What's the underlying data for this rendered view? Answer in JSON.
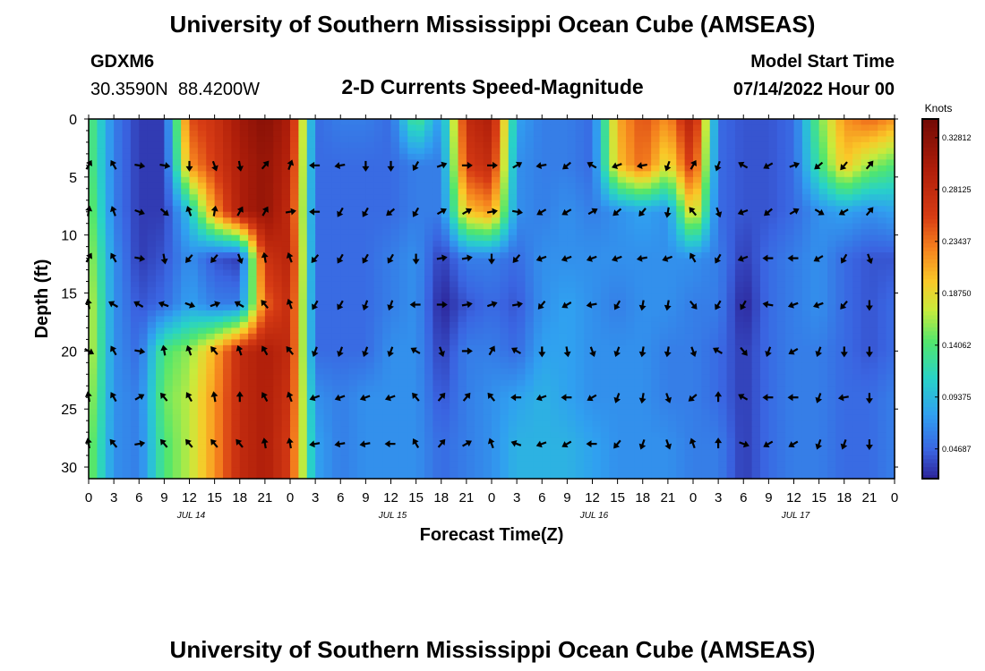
{
  "page": {
    "title": "University of Southern Mississippi Ocean Cube (AMSEAS)",
    "footer_title": "University of Southern Mississippi Ocean Cube (AMSEAS)",
    "station_id": "GDXM6",
    "station_coords": "30.3590N  88.4200W",
    "model_start_label": "Model Start Time",
    "model_start_value": "07/14/2022 Hour 00"
  },
  "chart_data": {
    "type": "heatmap",
    "title": "2-D Currents Speed-Magnitude",
    "xlabel": "Forecast Time(Z)",
    "ylabel": "Depth (ft)",
    "x_range_hours": [
      0,
      96
    ],
    "y_range_ft": [
      0,
      31
    ],
    "y_inverted": true,
    "y_ticks": [
      {
        "value": 0,
        "label": "0"
      },
      {
        "value": 5,
        "label": "5"
      },
      {
        "value": 10,
        "label": "10"
      },
      {
        "value": 15,
        "label": "15"
      },
      {
        "value": 20,
        "label": "20"
      },
      {
        "value": 25,
        "label": "25"
      },
      {
        "value": 30,
        "label": "30"
      }
    ],
    "x_ticks": [
      {
        "hour": 0,
        "label": "0"
      },
      {
        "hour": 3,
        "label": "3"
      },
      {
        "hour": 6,
        "label": "6"
      },
      {
        "hour": 9,
        "label": "9"
      },
      {
        "hour": 12,
        "label": "12"
      },
      {
        "hour": 15,
        "label": "15"
      },
      {
        "hour": 18,
        "label": "18"
      },
      {
        "hour": 21,
        "label": "21"
      },
      {
        "hour": 24,
        "label": "0"
      },
      {
        "hour": 27,
        "label": "3"
      },
      {
        "hour": 30,
        "label": "6"
      },
      {
        "hour": 33,
        "label": "9"
      },
      {
        "hour": 36,
        "label": "12"
      },
      {
        "hour": 39,
        "label": "15"
      },
      {
        "hour": 42,
        "label": "18"
      },
      {
        "hour": 45,
        "label": "21"
      },
      {
        "hour": 48,
        "label": "0"
      },
      {
        "hour": 51,
        "label": "3"
      },
      {
        "hour": 54,
        "label": "6"
      },
      {
        "hour": 57,
        "label": "9"
      },
      {
        "hour": 60,
        "label": "12"
      },
      {
        "hour": 63,
        "label": "15"
      },
      {
        "hour": 66,
        "label": "18"
      },
      {
        "hour": 69,
        "label": "21"
      },
      {
        "hour": 72,
        "label": "0"
      },
      {
        "hour": 75,
        "label": "3"
      },
      {
        "hour": 78,
        "label": "6"
      },
      {
        "hour": 81,
        "label": "9"
      },
      {
        "hour": 84,
        "label": "12"
      },
      {
        "hour": 87,
        "label": "15"
      },
      {
        "hour": 90,
        "label": "18"
      },
      {
        "hour": 93,
        "label": "21"
      },
      {
        "hour": 96,
        "label": "0"
      }
    ],
    "date_labels": [
      {
        "hour": 12,
        "label": "JUL 14"
      },
      {
        "hour": 36,
        "label": "JUL 15"
      },
      {
        "hour": 60,
        "label": "JUL 16"
      },
      {
        "hour": 84,
        "label": "JUL 17"
      }
    ],
    "colorbar": {
      "title": "Knots",
      "min": 0.02,
      "max": 0.345,
      "ticks": [
        {
          "value": 0.04687,
          "label": "0.04687"
        },
        {
          "value": 0.09375,
          "label": "0.09375"
        },
        {
          "value": 0.14062,
          "label": "0.14062"
        },
        {
          "value": 0.1875,
          "label": "0.18750"
        },
        {
          "value": 0.23437,
          "label": "0.23437"
        },
        {
          "value": 0.28125,
          "label": "0.28125"
        },
        {
          "value": 0.32812,
          "label": "0.32812"
        }
      ]
    },
    "speed_depths_ft": [
      0,
      4,
      8,
      12,
      16,
      20,
      24,
      28,
      31
    ],
    "speed_hours": [
      0,
      3,
      6,
      9,
      12,
      15,
      18,
      21,
      24,
      27,
      30,
      33,
      36,
      39,
      42,
      45,
      48,
      51,
      54,
      57,
      60,
      63,
      66,
      69,
      72,
      75,
      78,
      81,
      84,
      87,
      90,
      93,
      96
    ],
    "speed_knots": [
      [
        0.15,
        0.06,
        0.03,
        0.03,
        0.25,
        0.27,
        0.31,
        0.33,
        0.3,
        0.05,
        0.06,
        0.06,
        0.05,
        0.14,
        0.07,
        0.28,
        0.3,
        0.08,
        0.06,
        0.06,
        0.05,
        0.21,
        0.25,
        0.22,
        0.3,
        0.05,
        0.04,
        0.04,
        0.05,
        0.15,
        0.22,
        0.24,
        0.22
      ],
      [
        0.15,
        0.06,
        0.03,
        0.03,
        0.22,
        0.26,
        0.3,
        0.32,
        0.29,
        0.05,
        0.05,
        0.05,
        0.05,
        0.06,
        0.06,
        0.26,
        0.28,
        0.07,
        0.06,
        0.06,
        0.05,
        0.2,
        0.24,
        0.18,
        0.27,
        0.05,
        0.04,
        0.04,
        0.05,
        0.13,
        0.2,
        0.16,
        0.14
      ],
      [
        0.16,
        0.06,
        0.03,
        0.03,
        0.1,
        0.22,
        0.3,
        0.32,
        0.28,
        0.05,
        0.05,
        0.05,
        0.05,
        0.06,
        0.06,
        0.2,
        0.22,
        0.07,
        0.06,
        0.07,
        0.06,
        0.07,
        0.08,
        0.07,
        0.2,
        0.05,
        0.04,
        0.04,
        0.05,
        0.07,
        0.08,
        0.07,
        0.08
      ],
      [
        0.17,
        0.07,
        0.03,
        0.04,
        0.07,
        0.04,
        0.03,
        0.27,
        0.29,
        0.05,
        0.05,
        0.05,
        0.06,
        0.07,
        0.03,
        0.06,
        0.06,
        0.05,
        0.07,
        0.07,
        0.07,
        0.07,
        0.07,
        0.07,
        0.07,
        0.06,
        0.03,
        0.05,
        0.06,
        0.07,
        0.05,
        0.04,
        0.04
      ],
      [
        0.18,
        0.07,
        0.04,
        0.05,
        0.08,
        0.06,
        0.06,
        0.24,
        0.28,
        0.05,
        0.05,
        0.05,
        0.06,
        0.07,
        0.02,
        0.04,
        0.05,
        0.04,
        0.07,
        0.08,
        0.07,
        0.06,
        0.07,
        0.07,
        0.06,
        0.06,
        0.02,
        0.05,
        0.06,
        0.07,
        0.05,
        0.04,
        0.05
      ],
      [
        0.18,
        0.07,
        0.05,
        0.14,
        0.16,
        0.21,
        0.28,
        0.3,
        0.28,
        0.05,
        0.05,
        0.05,
        0.07,
        0.07,
        0.03,
        0.06,
        0.06,
        0.05,
        0.08,
        0.08,
        0.07,
        0.07,
        0.07,
        0.06,
        0.06,
        0.05,
        0.03,
        0.05,
        0.06,
        0.06,
        0.05,
        0.04,
        0.05
      ],
      [
        0.17,
        0.07,
        0.06,
        0.15,
        0.17,
        0.22,
        0.28,
        0.3,
        0.27,
        0.07,
        0.06,
        0.07,
        0.07,
        0.07,
        0.04,
        0.06,
        0.07,
        0.08,
        0.09,
        0.08,
        0.07,
        0.07,
        0.07,
        0.06,
        0.06,
        0.05,
        0.03,
        0.05,
        0.06,
        0.06,
        0.05,
        0.05,
        0.06
      ],
      [
        0.16,
        0.07,
        0.06,
        0.14,
        0.17,
        0.22,
        0.28,
        0.3,
        0.26,
        0.08,
        0.06,
        0.07,
        0.07,
        0.07,
        0.05,
        0.06,
        0.07,
        0.09,
        0.09,
        0.09,
        0.08,
        0.07,
        0.07,
        0.07,
        0.06,
        0.06,
        0.03,
        0.05,
        0.06,
        0.06,
        0.05,
        0.05,
        0.06
      ],
      [
        0.16,
        0.07,
        0.06,
        0.14,
        0.17,
        0.22,
        0.28,
        0.3,
        0.26,
        0.08,
        0.06,
        0.07,
        0.07,
        0.07,
        0.05,
        0.06,
        0.07,
        0.09,
        0.09,
        0.09,
        0.08,
        0.07,
        0.07,
        0.07,
        0.06,
        0.06,
        0.03,
        0.05,
        0.06,
        0.06,
        0.05,
        0.05,
        0.06
      ]
    ],
    "vector_depths_ft": [
      4,
      8,
      12,
      16,
      20,
      24,
      28
    ],
    "vector_hours": [
      0,
      3,
      6,
      9,
      12,
      15,
      18,
      21,
      24,
      27,
      30,
      33,
      36,
      39,
      42,
      45,
      48,
      51,
      54,
      57,
      60,
      63,
      66,
      69,
      72,
      75,
      78,
      81,
      84,
      87,
      90,
      93
    ],
    "direction_deg": [
      [
        30,
        330,
        100,
        100,
        180,
        160,
        170,
        40,
        20,
        270,
        260,
        180,
        180,
        210,
        70,
        90,
        90,
        60,
        260,
        230,
        300,
        250,
        260,
        200,
        30,
        200,
        300,
        240,
        70,
        230,
        220,
        40
      ],
      [
        10,
        340,
        110,
        130,
        340,
        10,
        30,
        30,
        80,
        270,
        210,
        210,
        230,
        210,
        60,
        60,
        80,
        100,
        240,
        240,
        60,
        230,
        220,
        190,
        320,
        160,
        250,
        230,
        60,
        120,
        240,
        40
      ],
      [
        30,
        330,
        100,
        170,
        220,
        220,
        160,
        350,
        340,
        220,
        210,
        210,
        210,
        180,
        80,
        80,
        180,
        220,
        250,
        250,
        250,
        250,
        260,
        250,
        330,
        210,
        250,
        270,
        270,
        240,
        210,
        160
      ],
      [
        350,
        300,
        300,
        290,
        110,
        70,
        300,
        320,
        340,
        210,
        210,
        200,
        200,
        270,
        90,
        80,
        70,
        80,
        220,
        240,
        260,
        210,
        190,
        190,
        140,
        210,
        210,
        280,
        250,
        250,
        220,
        180
      ],
      [
        120,
        330,
        100,
        350,
        340,
        320,
        340,
        330,
        320,
        200,
        200,
        200,
        200,
        300,
        160,
        90,
        30,
        300,
        180,
        170,
        160,
        200,
        190,
        190,
        160,
        300,
        140,
        200,
        240,
        200,
        180,
        180
      ],
      [
        350,
        330,
        60,
        320,
        330,
        350,
        360,
        330,
        340,
        250,
        250,
        250,
        250,
        320,
        40,
        40,
        320,
        270,
        250,
        270,
        240,
        200,
        190,
        160,
        230,
        360,
        300,
        270,
        270,
        200,
        260,
        180
      ],
      [
        350,
        320,
        80,
        320,
        320,
        320,
        320,
        350,
        350,
        260,
        260,
        260,
        270,
        330,
        40,
        60,
        340,
        290,
        250,
        240,
        270,
        220,
        200,
        160,
        340,
        360,
        110,
        240,
        240,
        200,
        200,
        180
      ]
    ]
  }
}
